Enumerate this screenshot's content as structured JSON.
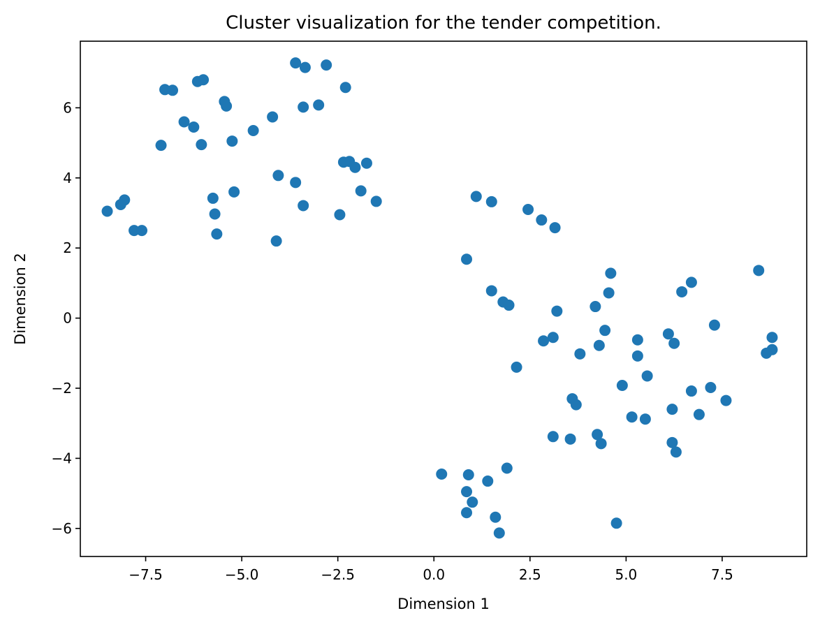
{
  "chart_data": {
    "type": "scatter",
    "title": "Cluster visualization for the tender competition.",
    "xlabel": "Dimension 1",
    "ylabel": "Dimension 2",
    "xlim": [
      -9.2,
      9.7
    ],
    "ylim": [
      -6.8,
      7.9
    ],
    "xticks": [
      -7.5,
      -5.0,
      -2.5,
      0.0,
      2.5,
      5.0,
      7.5
    ],
    "xtick_labels": [
      "−7.5",
      "−5.0",
      "−2.5",
      "0.0",
      "2.5",
      "5.0",
      "7.5"
    ],
    "yticks": [
      -6,
      -4,
      -2,
      0,
      2,
      4,
      6
    ],
    "ytick_labels": [
      "−6",
      "−4",
      "−2",
      "0",
      "2",
      "4",
      "6"
    ],
    "grid": false,
    "legend": false,
    "marker_color": "#1f77b4",
    "series": [
      {
        "points": [
          [
            -3.6,
            7.28
          ],
          [
            -3.35,
            7.15
          ],
          [
            -2.8,
            7.22
          ],
          [
            -2.3,
            6.58
          ],
          [
            -7.0,
            6.52
          ],
          [
            -6.8,
            6.5
          ],
          [
            -6.15,
            6.75
          ],
          [
            -6.0,
            6.8
          ],
          [
            -5.45,
            6.18
          ],
          [
            -5.4,
            6.05
          ],
          [
            -3.0,
            6.08
          ],
          [
            -3.4,
            6.02
          ],
          [
            -4.2,
            5.74
          ],
          [
            -6.5,
            5.6
          ],
          [
            -6.25,
            5.45
          ],
          [
            -4.7,
            5.35
          ],
          [
            -5.25,
            5.05
          ],
          [
            -7.1,
            4.93
          ],
          [
            -6.05,
            4.95
          ],
          [
            -2.35,
            4.45
          ],
          [
            -2.2,
            4.47
          ],
          [
            -2.05,
            4.3
          ],
          [
            -1.75,
            4.42
          ],
          [
            -4.05,
            4.07
          ],
          [
            -3.6,
            3.87
          ],
          [
            -1.9,
            3.63
          ],
          [
            -5.2,
            3.6
          ],
          [
            -5.75,
            3.42
          ],
          [
            -1.5,
            3.33
          ],
          [
            -8.05,
            3.37
          ],
          [
            -8.15,
            3.24
          ],
          [
            -3.4,
            3.21
          ],
          [
            -8.5,
            3.05
          ],
          [
            -5.7,
            2.97
          ],
          [
            -2.45,
            2.95
          ],
          [
            -7.8,
            2.5
          ],
          [
            -7.6,
            2.5
          ],
          [
            -5.65,
            2.4
          ],
          [
            -4.1,
            2.2
          ],
          [
            1.1,
            3.47
          ],
          [
            1.5,
            3.32
          ],
          [
            2.45,
            3.1
          ],
          [
            2.8,
            2.8
          ],
          [
            3.15,
            2.58
          ],
          [
            0.85,
            1.68
          ],
          [
            8.45,
            1.36
          ],
          [
            4.6,
            1.28
          ],
          [
            6.7,
            1.02
          ],
          [
            1.5,
            0.78
          ],
          [
            6.45,
            0.75
          ],
          [
            4.55,
            0.72
          ],
          [
            1.8,
            0.46
          ],
          [
            1.95,
            0.37
          ],
          [
            4.2,
            0.33
          ],
          [
            3.2,
            0.2
          ],
          [
            7.3,
            -0.2
          ],
          [
            4.45,
            -0.35
          ],
          [
            6.1,
            -0.45
          ],
          [
            3.1,
            -0.55
          ],
          [
            8.8,
            -0.55
          ],
          [
            2.85,
            -0.65
          ],
          [
            5.3,
            -0.62
          ],
          [
            6.25,
            -0.72
          ],
          [
            4.3,
            -0.78
          ],
          [
            8.8,
            -0.9
          ],
          [
            8.65,
            -1.0
          ],
          [
            3.8,
            -1.02
          ],
          [
            5.3,
            -1.08
          ],
          [
            2.15,
            -1.4
          ],
          [
            5.55,
            -1.65
          ],
          [
            4.9,
            -1.92
          ],
          [
            7.2,
            -1.98
          ],
          [
            6.7,
            -2.08
          ],
          [
            3.6,
            -2.3
          ],
          [
            3.7,
            -2.47
          ],
          [
            7.6,
            -2.35
          ],
          [
            6.2,
            -2.6
          ],
          [
            6.9,
            -2.75
          ],
          [
            5.15,
            -2.82
          ],
          [
            5.5,
            -2.88
          ],
          [
            3.1,
            -3.38
          ],
          [
            3.55,
            -3.45
          ],
          [
            4.25,
            -3.32
          ],
          [
            4.35,
            -3.58
          ],
          [
            6.2,
            -3.55
          ],
          [
            6.3,
            -3.82
          ],
          [
            0.2,
            -4.45
          ],
          [
            0.9,
            -4.47
          ],
          [
            1.4,
            -4.65
          ],
          [
            1.9,
            -4.28
          ],
          [
            0.85,
            -4.95
          ],
          [
            1.0,
            -5.25
          ],
          [
            0.85,
            -5.55
          ],
          [
            1.6,
            -5.68
          ],
          [
            4.75,
            -5.85
          ],
          [
            1.7,
            -6.13
          ]
        ]
      }
    ]
  }
}
